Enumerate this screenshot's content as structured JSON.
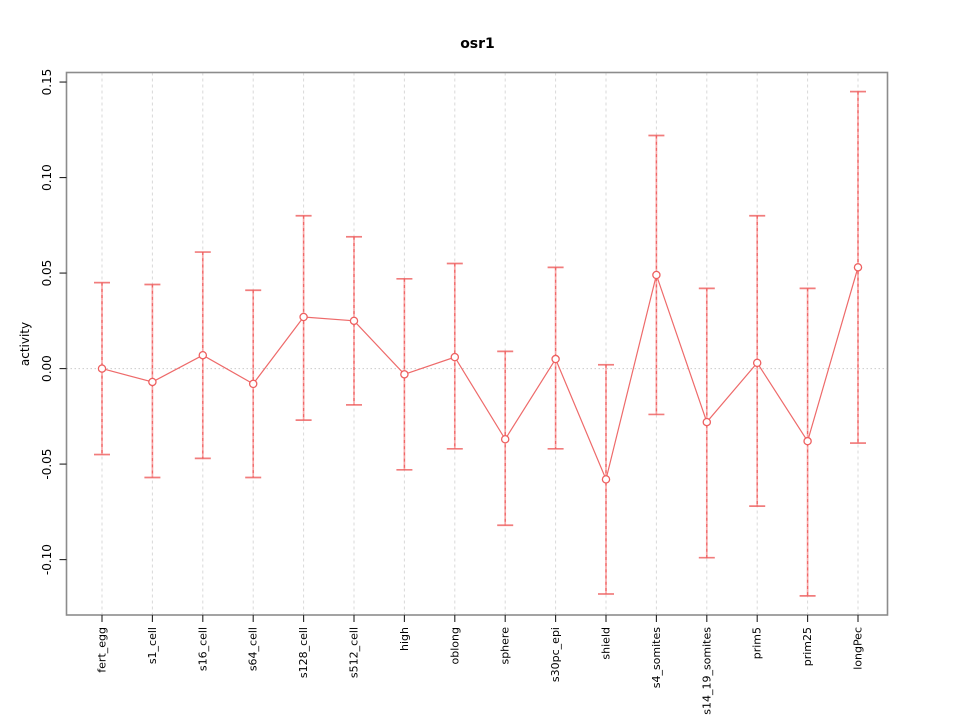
{
  "chart_data": {
    "type": "line",
    "title": "osr1",
    "xlabel": "",
    "ylabel": "activity",
    "legend": "none",
    "grid": "vertical dashed gridlines at each category; dotted horizontal line at y=0",
    "categories": [
      "fert_egg",
      "s1_cell",
      "s16_cell",
      "s64_cell",
      "s128_cell",
      "s512_cell",
      "high",
      "oblong",
      "sphere",
      "s30pc_epi",
      "shield",
      "s4_somites",
      "s14_19_somites",
      "prim5",
      "prim25",
      "longPec"
    ],
    "series": [
      {
        "name": "activity",
        "values": [
          0.0,
          -0.007,
          0.007,
          -0.008,
          0.027,
          0.025,
          -0.003,
          0.006,
          -0.037,
          0.005,
          -0.058,
          0.049,
          -0.028,
          0.003,
          -0.038,
          0.053
        ],
        "error_upper": [
          0.045,
          0.044,
          0.061,
          0.041,
          0.08,
          0.069,
          0.047,
          0.055,
          0.009,
          0.053,
          0.002,
          0.122,
          0.042,
          0.08,
          0.042,
          0.145
        ],
        "error_lower": [
          -0.045,
          -0.057,
          -0.047,
          -0.057,
          -0.027,
          -0.019,
          -0.053,
          -0.042,
          -0.082,
          -0.042,
          -0.118,
          -0.024,
          -0.099,
          -0.072,
          -0.119,
          -0.039
        ]
      }
    ],
    "ytick_values": [
      -0.1,
      -0.05,
      0.0,
      0.05,
      0.1,
      0.15
    ],
    "ytick_labels": [
      "-0.10",
      "-0.05",
      "0.00",
      "0.05",
      "0.10",
      "0.15"
    ],
    "ylim": [
      -0.129,
      0.155
    ]
  },
  "colors": {
    "series_line": "#ee6a6a",
    "error_bar_base": "#f9a8a8",
    "error_bar_dash": "#ee5c5c",
    "marker_stroke": "#ee6060",
    "marker_fill": "#ffffff",
    "gridline": "#d9d9d9",
    "zero_line": "#cccccc",
    "frame": "#8c8c8c",
    "tick": "#222222",
    "text": "#000000"
  }
}
